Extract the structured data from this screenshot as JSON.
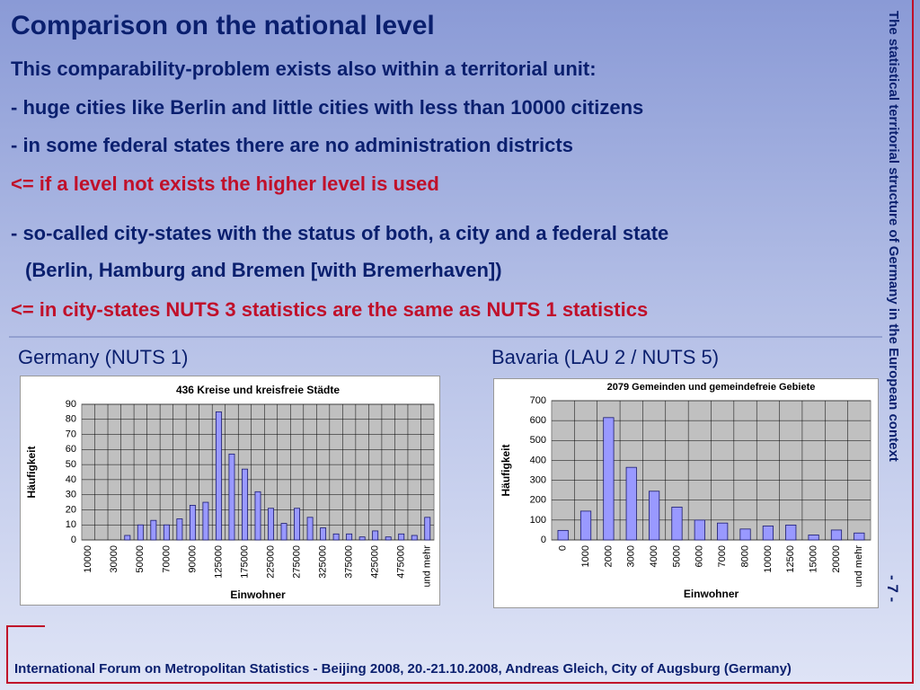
{
  "title": "Comparison on the national level",
  "lines": [
    {
      "text": "This comparability-problem exists also within a territorial unit:",
      "color": "#0a1f6e"
    },
    {
      "text": "- huge cities like Berlin and little cities with less than 10000 citizens",
      "color": "#0a1f6e"
    },
    {
      "text": "- in some federal states there are no administration districts",
      "color": "#0a1f6e"
    },
    {
      "text": "<= if a level not exists the higher level is used",
      "color": "#c0102a"
    },
    {
      "text": "- so-called city-states with the status of both, a city and a federal state",
      "color": "#0a1f6e"
    },
    {
      "text": "(Berlin, Hamburg and Bremen [with Bremerhaven])",
      "color": "#0a1f6e"
    },
    {
      "text": "<= in city-states NUTS 3 statistics are the same as NUTS 1 statistics",
      "color": "#c0102a"
    }
  ],
  "chart_headings": [
    "Germany (NUTS 1)",
    "Bavaria (LAU 2 / NUTS 5)"
  ],
  "side_text": "The statistical territorial structure of Germany in the European context",
  "page_number": "- 7 -",
  "footer": "International Forum on Metropolitan Statistics - Beijing 2008, 20.-21.10.2008,  Andreas Gleich, City of Augsburg (Germany)",
  "chart_data": [
    {
      "type": "bar",
      "title": "436 Kreise und kreisfreie Städte",
      "ylabel": "Häufigkeit",
      "xlabel": "Einwohner",
      "categories": [
        "10000",
        null,
        "30000",
        null,
        "50000",
        null,
        "70000",
        null,
        "90000",
        null,
        "125000",
        null,
        "175000",
        null,
        "225000",
        null,
        "275000",
        null,
        "325000",
        null,
        "375000",
        null,
        "425000",
        null,
        "475000",
        null,
        "und mehr"
      ],
      "values": [
        0,
        0,
        0,
        3,
        10,
        13,
        10,
        14,
        23,
        25,
        85,
        57,
        47,
        32,
        21,
        11,
        21,
        15,
        8,
        4,
        4,
        2,
        6,
        2,
        4,
        3,
        15
      ],
      "color": "#9999ff",
      "ylim": [
        0,
        90
      ],
      "yticks": [
        0,
        10,
        20,
        30,
        40,
        50,
        60,
        70,
        80,
        90
      ],
      "grid": true
    },
    {
      "type": "bar",
      "title": "2079 Gemeinden und gemeindefreie Gebiete",
      "ylabel": "Häufigkeit",
      "xlabel": "Einwohner",
      "categories": [
        "0",
        "1000",
        "2000",
        "3000",
        "4000",
        "5000",
        "6000",
        "7000",
        "8000",
        "10000",
        "12500",
        "15000",
        "20000",
        "und mehr"
      ],
      "values": [
        48,
        145,
        615,
        365,
        245,
        165,
        100,
        85,
        55,
        70,
        75,
        25,
        50,
        35
      ],
      "color": "#9999ff",
      "ylim": [
        0,
        700
      ],
      "yticks": [
        0,
        100,
        200,
        300,
        400,
        500,
        600,
        700
      ],
      "grid": true
    }
  ]
}
